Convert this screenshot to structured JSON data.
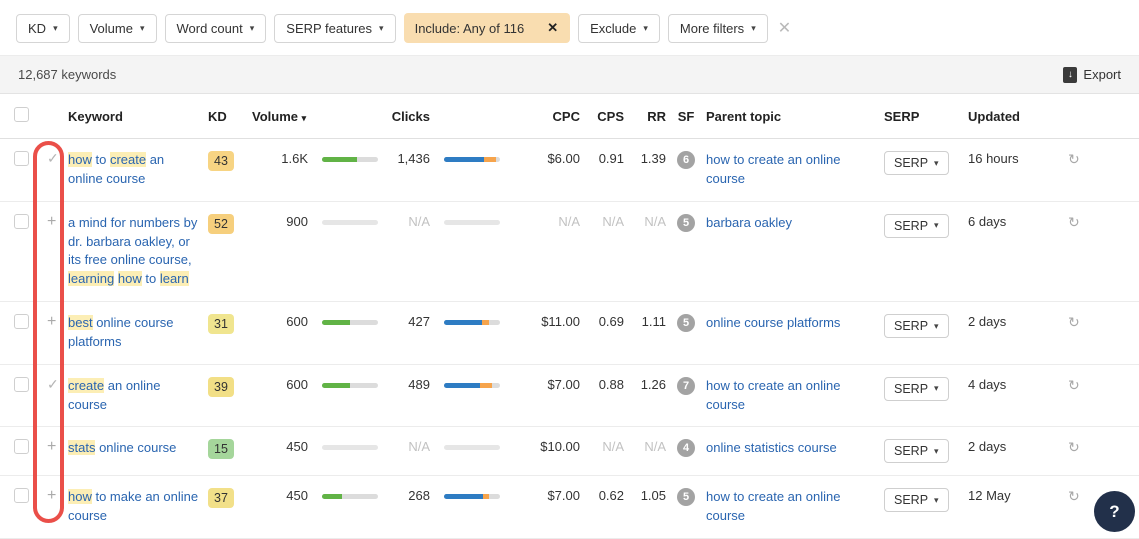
{
  "filter_bar": {
    "caret": "▾",
    "dropdowns": [
      {
        "label": "KD"
      },
      {
        "label": "Volume"
      },
      {
        "label": "Word count"
      },
      {
        "label": "SERP features"
      }
    ],
    "include_filter": {
      "label": "Include: Any of 116",
      "remove_icon": "✕"
    },
    "post_dropdowns": [
      {
        "label": "Exclude"
      },
      {
        "label": "More filters"
      }
    ],
    "clear_all_icon": "✕"
  },
  "results_bar": {
    "count_label": "12,687 keywords",
    "export_label": "Export",
    "export_icon_glyph": "↓"
  },
  "table": {
    "headers": {
      "keyword": "Keyword",
      "kd": "KD",
      "volume": "Volume",
      "volume_sort_caret": "▾",
      "clicks": "Clicks",
      "cpc": "CPC",
      "cps": "CPS",
      "rr": "RR",
      "sf": "SF",
      "parent_topic": "Parent topic",
      "serp": "SERP",
      "updated": "Updated"
    },
    "serp_button_label": "SERP",
    "serp_caret": "▾",
    "refresh_icon": "↻",
    "rows": [
      {
        "added": true,
        "keyword_segments": [
          {
            "t": "how",
            "h": true
          },
          {
            "t": " to ",
            "h": false
          },
          {
            "t": "create",
            "h": true
          },
          {
            "t": " an online course",
            "h": false
          }
        ],
        "kd": "43",
        "kd_color": "#f7d483",
        "volume": "1.6K",
        "volume_bar": 0.62,
        "clicks": "1,436",
        "clicks_bar": {
          "blue": 0.72,
          "orange": 0.2
        },
        "cpc": "$6.00",
        "cps": "0.91",
        "rr": "1.39",
        "sf": "6",
        "parent_topic": "how to create an online course",
        "updated": "16 hours"
      },
      {
        "added": false,
        "keyword_segments": [
          {
            "t": "a mind for numbers by dr. barbara oakley, or its free online course, ",
            "h": false
          },
          {
            "t": "learning",
            "h": true
          },
          {
            "t": " ",
            "h": false
          },
          {
            "t": "how",
            "h": true
          },
          {
            "t": " to ",
            "h": false
          },
          {
            "t": "learn",
            "h": true
          }
        ],
        "kd": "52",
        "kd_color": "#f6cf7d",
        "volume": "900",
        "volume_bar": 0,
        "clicks": "N/A",
        "clicks_bar": null,
        "cpc": "N/A",
        "cps": "N/A",
        "rr": "N/A",
        "sf": "5",
        "parent_topic": "barbara oakley",
        "updated": "6 days"
      },
      {
        "added": false,
        "keyword_segments": [
          {
            "t": "best",
            "h": true
          },
          {
            "t": " online course platforms",
            "h": false
          }
        ],
        "kd": "31",
        "kd_color": "#f0e58f",
        "volume": "600",
        "volume_bar": 0.5,
        "clicks": "427",
        "clicks_bar": {
          "blue": 0.68,
          "orange": 0.12
        },
        "cpc": "$11.00",
        "cps": "0.69",
        "rr": "1.11",
        "sf": "5",
        "parent_topic": "online course platforms",
        "updated": "2 days"
      },
      {
        "added": true,
        "keyword_segments": [
          {
            "t": "create",
            "h": true
          },
          {
            "t": " an online course",
            "h": false
          }
        ],
        "kd": "39",
        "kd_color": "#f2df86",
        "volume": "600",
        "volume_bar": 0.5,
        "clicks": "489",
        "clicks_bar": {
          "blue": 0.64,
          "orange": 0.22
        },
        "cpc": "$7.00",
        "cps": "0.88",
        "rr": "1.26",
        "sf": "7",
        "parent_topic": "how to create an online course",
        "updated": "4 days"
      },
      {
        "added": false,
        "keyword_segments": [
          {
            "t": "stats",
            "h": true
          },
          {
            "t": " online course",
            "h": false
          }
        ],
        "kd": "15",
        "kd_color": "#a5d69b",
        "volume": "450",
        "volume_bar": 0,
        "clicks": "N/A",
        "clicks_bar": null,
        "cpc": "$10.00",
        "cps": "N/A",
        "rr": "N/A",
        "sf": "4",
        "parent_topic": "online statistics course",
        "updated": "2 days"
      },
      {
        "added": false,
        "keyword_segments": [
          {
            "t": "how",
            "h": true
          },
          {
            "t": " to make an online course",
            "h": false
          }
        ],
        "kd": "37",
        "kd_color": "#f2e089",
        "volume": "450",
        "volume_bar": 0.36,
        "clicks": "268",
        "clicks_bar": {
          "blue": 0.7,
          "orange": 0.1
        },
        "cpc": "$7.00",
        "cps": "0.62",
        "rr": "1.05",
        "sf": "5",
        "parent_topic": "how to create an online course",
        "updated": "12 May"
      }
    ]
  },
  "help_button": {
    "label": "?"
  },
  "colors": {
    "link_blue": "#2a65b0",
    "highlight_yellow": "#fceeb5",
    "include_chip_bg": "#f9ddb0",
    "bar_green": "#61b346",
    "bar_blue": "#2e7cc3",
    "bar_orange": "#f6a44c",
    "annotation_red": "#e8403a",
    "help_bg": "#22304a"
  }
}
